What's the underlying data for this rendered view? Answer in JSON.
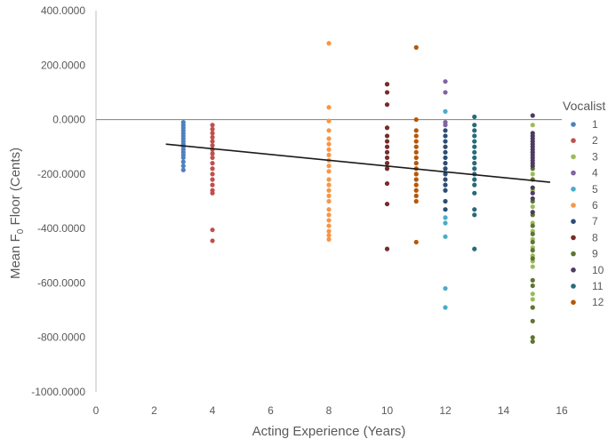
{
  "chart_data": {
    "type": "scatter",
    "xlabel": "Acting Experience (Years)",
    "ylabel_main": "Mean F",
    "ylabel_sub": "0",
    "ylabel_rest": " Floor (Cents)",
    "xlim": [
      0,
      16
    ],
    "ylim": [
      -1000,
      400
    ],
    "x_ticks": [
      "0",
      "2",
      "4",
      "6",
      "8",
      "10",
      "12",
      "14",
      "16"
    ],
    "y_ticks": [
      "400.0000",
      "200.0000",
      "0.0000",
      "-200.0000",
      "-400.0000",
      "-600.0000",
      "-800.0000",
      "-1000.0000"
    ],
    "grid": false,
    "zero_line": true,
    "legend_title": "Vocalist",
    "legend_position": "right",
    "trendline": {
      "x1": 2.4,
      "y1": -90,
      "x2": 15.6,
      "y2": -230,
      "color": "#1a1a1a"
    },
    "series": [
      {
        "name": "1",
        "color": "#4f81bd",
        "x": 3,
        "values": [
          -10,
          -20,
          -30,
          -40,
          -50,
          -60,
          -70,
          -80,
          -90,
          -100,
          -110,
          -120,
          -130,
          -140,
          -155,
          -170,
          -185
        ]
      },
      {
        "name": "2",
        "color": "#c0504d",
        "x": 4,
        "values": [
          -20,
          -35,
          -50,
          -65,
          -80,
          -95,
          -110,
          -125,
          -140,
          -160,
          -180,
          -200,
          -220,
          -240,
          -260,
          -270,
          -405,
          -445
        ]
      },
      {
        "name": "3",
        "color": "#9bbb59",
        "x": 15,
        "values": [
          -20,
          -120,
          -200,
          -260,
          -320,
          -380,
          -410,
          -440,
          -470,
          -500,
          -520,
          -540,
          -640,
          -660,
          -690
        ]
      },
      {
        "name": "4",
        "color": "#8064a2",
        "x": 12,
        "values": [
          140,
          100,
          -10,
          -20
        ]
      },
      {
        "name": "5",
        "color": "#4bacc6",
        "x": 12,
        "values": [
          30,
          -360,
          -380,
          -430,
          -620,
          -690
        ]
      },
      {
        "name": "6",
        "color": "#f79646",
        "x": 8,
        "values": [
          280,
          45,
          -5,
          -40,
          -70,
          -90,
          -110,
          -130,
          -150,
          -170,
          -190,
          -220,
          -240,
          -260,
          -280,
          -300,
          -330,
          -350,
          -370,
          -390,
          -410,
          -425,
          -440
        ]
      },
      {
        "name": "7",
        "color": "#2c4d75",
        "x": 12,
        "values": [
          -40,
          -60,
          -80,
          -100,
          -120,
          -140,
          -160,
          -180,
          -200,
          -220,
          -240,
          -260,
          -300,
          -330
        ]
      },
      {
        "name": "8",
        "color": "#772c2a",
        "x": 10,
        "values": [
          130,
          100,
          55,
          -30,
          -60,
          -80,
          -100,
          -120,
          -140,
          -160,
          -180,
          -235,
          -310,
          -475
        ]
      },
      {
        "name": "9",
        "color": "#5f7530",
        "x": 15,
        "values": [
          -180,
          -220,
          -300,
          -350,
          -390,
          -420,
          -450,
          -480,
          -510,
          -590,
          -610,
          -690,
          -740,
          -800,
          -815
        ]
      },
      {
        "name": "10",
        "color": "#4d3b62",
        "x": 15,
        "values": [
          15,
          -50,
          -60,
          -70,
          -80,
          -90,
          -100,
          -110,
          -120,
          -130,
          -140,
          -150,
          -160,
          -170,
          -250,
          -270,
          -290,
          -340
        ]
      },
      {
        "name": "11",
        "color": "#276a7c",
        "x": 13,
        "values": [
          10,
          -20,
          -40,
          -60,
          -80,
          -100,
          -120,
          -140,
          -160,
          -180,
          -200,
          -220,
          -240,
          -270,
          -330,
          -350,
          -475
        ]
      },
      {
        "name": "12",
        "color": "#b65708",
        "x": 11,
        "values": [
          265,
          0,
          -40,
          -60,
          -80,
          -100,
          -120,
          -140,
          -160,
          -180,
          -200,
          -220,
          -240,
          -260,
          -280,
          -300,
          -450
        ]
      }
    ]
  }
}
